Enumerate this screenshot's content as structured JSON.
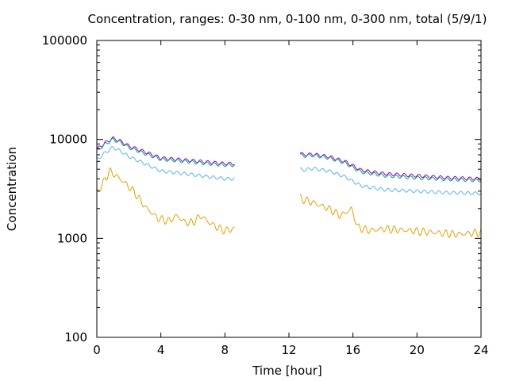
{
  "chart_data": {
    "type": "line",
    "title": "Concentration, ranges: 0-30 nm, 0-100 nm, 0-300 nm, total (5/9/1)",
    "xlabel": "Time [hour]",
    "ylabel": "Concentration",
    "xlim": [
      0,
      24
    ],
    "ylim": [
      100,
      100000
    ],
    "yscale": "log",
    "grid": false,
    "legend": "none",
    "x_ticks": [
      0,
      4,
      8,
      12,
      16,
      20,
      24
    ],
    "x_tick_labels": [
      "0",
      "4",
      "8",
      "12",
      "16",
      "20",
      "24"
    ],
    "y_ticks": [
      100,
      1000,
      10000,
      100000
    ],
    "y_tick_labels": [
      "100",
      "1000",
      "10000",
      "100000"
    ],
    "series": [
      {
        "color": "#9400d3",
        "segments": [
          {
            "x": [
              0,
              0.5,
              1,
              1.5,
              2,
              3,
              4,
              5,
              6,
              7,
              8,
              8.6
            ],
            "y": [
              8000,
              9200,
              10300,
              9600,
              8600,
              7500,
              6500,
              6300,
              6100,
              5900,
              5700,
              5700
            ]
          },
          {
            "x": [
              12.7,
              12.9,
              13.5,
              14.5,
              15.5,
              16.5,
              18,
              20,
              22,
              24
            ],
            "y": [
              7300,
              7000,
              7100,
              6700,
              6000,
              4900,
              4500,
              4300,
              4100,
              4000
            ]
          }
        ]
      },
      {
        "color": "#009e73",
        "segments": [
          {
            "x": [
              0,
              0.5,
              1,
              1.5,
              2,
              3,
              4,
              5,
              6,
              7,
              8,
              8.6
            ],
            "y": [
              7700,
              8900,
              10000,
              9300,
              8300,
              7200,
              6300,
              6100,
              5900,
              5700,
              5500,
              5500
            ]
          },
          {
            "x": [
              12.7,
              12.9,
              13.5,
              14.5,
              15.5,
              16.5,
              18,
              20,
              22,
              24
            ],
            "y": [
              7000,
              6800,
              6900,
              6500,
              5800,
              4700,
              4300,
              4100,
              3950,
              3850
            ]
          }
        ]
      },
      {
        "color": "#56b4e9",
        "segments": [
          {
            "x": [
              0,
              0.5,
              1,
              1.5,
              2,
              3,
              4,
              5,
              6,
              7,
              8,
              8.6
            ],
            "y": [
              6200,
              7300,
              8300,
              7600,
              6700,
              5700,
              4800,
              4600,
              4400,
              4200,
              4000,
              4000
            ]
          },
          {
            "x": [
              12.7,
              12.9,
              13.5,
              14.5,
              15.5,
              16.5,
              18,
              20,
              22,
              24
            ],
            "y": [
              5000,
              4900,
              5100,
              4800,
              4200,
              3400,
              3100,
              3000,
              2900,
              2850
            ]
          }
        ]
      },
      {
        "color": "#e69f00",
        "segments": [
          {
            "x": [
              0,
              0.3,
              0.8,
              1.2,
              1.7,
              2.3,
              3,
              3.8,
              4.5,
              5,
              5.5,
              6,
              6.5,
              7,
              7.5,
              8,
              8.6
            ],
            "y": [
              2900,
              3400,
              4800,
              4300,
              3700,
              3000,
              2100,
              1600,
              1500,
              1700,
              1450,
              1450,
              1700,
              1450,
              1300,
              1200,
              1250
            ]
          },
          {
            "x": [
              12.7,
              12.8,
              13.5,
              14.5,
              15.2,
              15.5,
              15.9,
              16.3,
              17,
              18,
              19.5,
              21,
              22.5,
              24
            ],
            "y": [
              2600,
              2500,
              2300,
              2000,
              1700,
              1800,
              2000,
              1300,
              1200,
              1250,
              1200,
              1150,
              1100,
              1150
            ]
          }
        ]
      }
    ]
  }
}
